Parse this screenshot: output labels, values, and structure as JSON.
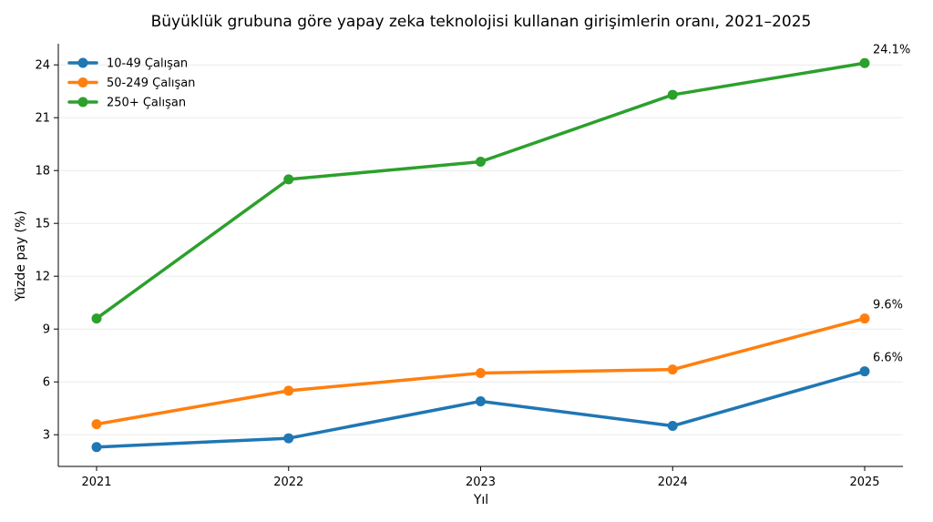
{
  "chart_data": {
    "type": "line",
    "title": "Büyüklük grubuna göre yapay zeka teknolojisi kullanan girişimlerin oranı, 2021–2025",
    "xlabel": "Yıl",
    "ylabel": "Yüzde pay (%)",
    "x": [
      2021,
      2022,
      2023,
      2024,
      2025
    ],
    "x_tick_labels": [
      "2021",
      "2022",
      "2023",
      "2024",
      "2025"
    ],
    "y_ticks": [
      3,
      6,
      9,
      12,
      15,
      18,
      21,
      24
    ],
    "y_tick_labels": [
      "3",
      "6",
      "9",
      "12",
      "15",
      "18",
      "21",
      "24"
    ],
    "ylim": [
      1.2,
      25.2
    ],
    "grid": "horizontal",
    "legend_position": "top-left",
    "series": [
      {
        "name": "10-49 Çalışan",
        "color": "#1f77b4",
        "values": [
          2.3,
          2.8,
          4.9,
          3.5,
          6.6
        ],
        "end_label": "6.6%"
      },
      {
        "name": "50-249 Çalışan",
        "color": "#ff7f0e",
        "values": [
          3.6,
          5.5,
          6.5,
          6.7,
          9.6
        ],
        "end_label": "9.6%"
      },
      {
        "name": "250+ Çalışan",
        "color": "#2ca02c",
        "values": [
          9.6,
          17.5,
          18.5,
          22.3,
          24.1
        ],
        "end_label": "24.1%"
      }
    ]
  }
}
